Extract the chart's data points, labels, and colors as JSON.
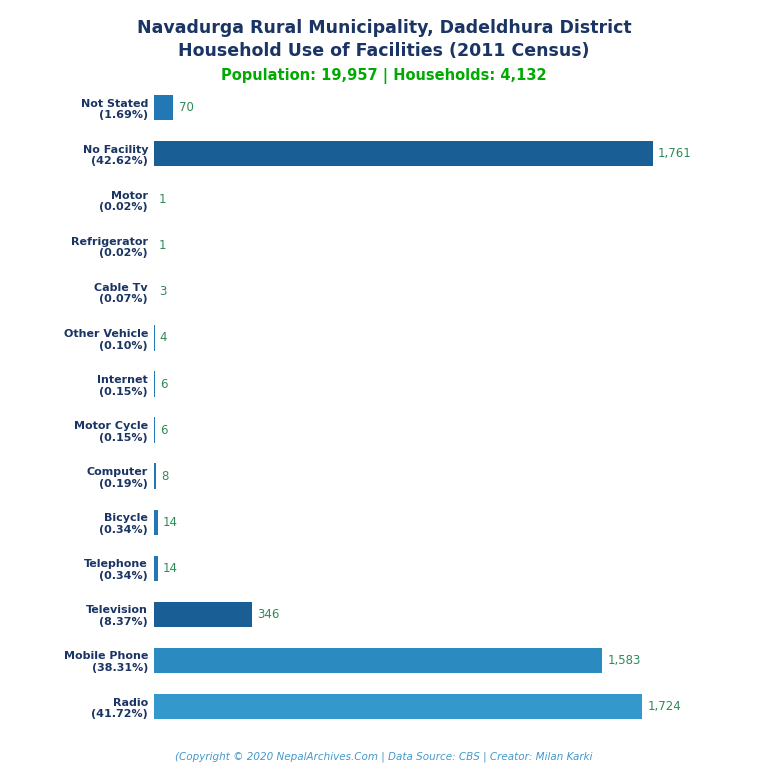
{
  "title_line1": "Navadurga Rural Municipality, Dadeldhura District",
  "title_line2": "Household Use of Facilities (2011 Census)",
  "subtitle": "Population: 19,957 | Households: 4,132",
  "categories": [
    "Not Stated\n(1.69%)",
    "No Facility\n(42.62%)",
    "Motor\n(0.02%)",
    "Refrigerator\n(0.02%)",
    "Cable Tv\n(0.07%)",
    "Other Vehicle\n(0.10%)",
    "Internet\n(0.15%)",
    "Motor Cycle\n(0.15%)",
    "Computer\n(0.19%)",
    "Bicycle\n(0.34%)",
    "Telephone\n(0.34%)",
    "Television\n(8.37%)",
    "Mobile Phone\n(38.31%)",
    "Radio\n(41.72%)"
  ],
  "values": [
    70,
    1761,
    1,
    1,
    3,
    4,
    6,
    6,
    8,
    14,
    14,
    346,
    1583,
    1724
  ],
  "bar_colors": [
    "#2278b5",
    "#1a5e96",
    "#2278b5",
    "#2278b5",
    "#2278b5",
    "#2278b5",
    "#2278b5",
    "#2278b5",
    "#2278b5",
    "#2278b5",
    "#2278b5",
    "#1a5e96",
    "#2b8abf",
    "#3399cc"
  ],
  "title_color": "#1a3464",
  "subtitle_color": "#00aa00",
  "value_label_color": "#2e8b57",
  "ylabel_color": "#1a3464",
  "footer_text": "(Copyright © 2020 NepalArchives.Com | Data Source: CBS | Creator: Milan Karki",
  "footer_color": "#4499cc",
  "background_color": "#ffffff",
  "xlim": [
    0,
    1950
  ]
}
